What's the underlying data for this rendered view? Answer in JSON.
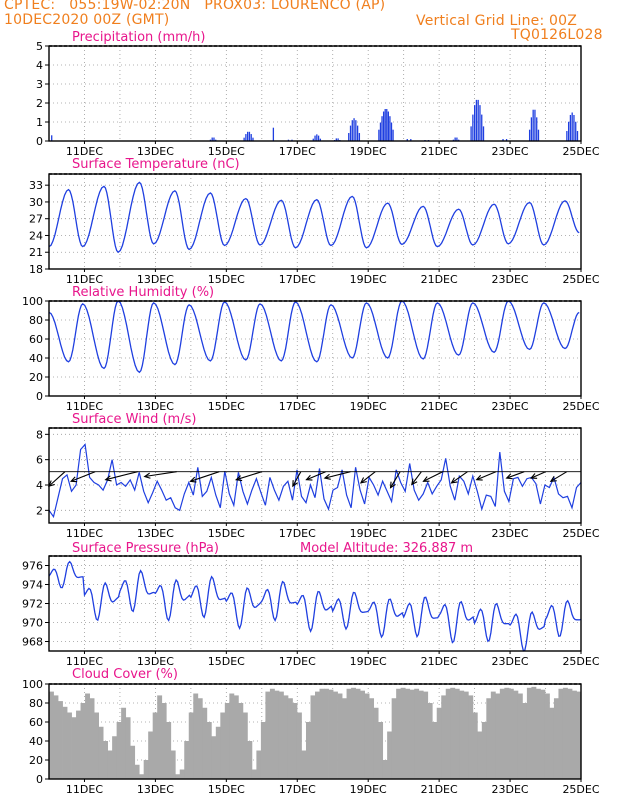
{
  "header": {
    "line1": "CPTEC:   055:19W-02:20N   PROX03: LOURENCO (AP)",
    "line2": "10DEC2020 00Z (GMT)",
    "vertical_grid": "Vertical Grid Line: 00Z",
    "code": "TQ0126L028",
    "model_altitude": "Model Altitude: 326.887  m"
  },
  "colors": {
    "title": "#e8168c",
    "header": "#f07f1e",
    "series": "#1f3fe0",
    "vector": "#000000",
    "cloud": "#a9a9a9",
    "grid": "#9a9a9a"
  },
  "chart_data": [
    {
      "id": "precipitation",
      "type": "bar",
      "title": "Precipitation (mm/h)",
      "ylim": [
        0,
        5
      ],
      "yticks": [
        0,
        1,
        2,
        3,
        4,
        5
      ],
      "xticks": [
        "11DEC",
        "13DEC",
        "15DEC",
        "17DEC",
        "19DEC",
        "21DEC",
        "23DEC",
        "25DEC"
      ],
      "time_range_days": [
        0,
        15
      ],
      "grid": true,
      "bursts": [
        {
          "t": 0.05,
          "w": 0.05,
          "h": 0.3
        },
        {
          "t": 4.55,
          "w": 0.15,
          "h": 0.2
        },
        {
          "t": 5.5,
          "w": 0.25,
          "h": 0.5
        },
        {
          "t": 6.3,
          "w": 0.05,
          "h": 0.7
        },
        {
          "t": 6.75,
          "w": 0.1,
          "h": 0.2
        },
        {
          "t": 7.45,
          "w": 0.2,
          "h": 0.35
        },
        {
          "t": 8.05,
          "w": 0.15,
          "h": 0.15
        },
        {
          "t": 8.45,
          "w": 0.3,
          "h": 1.2
        },
        {
          "t": 9.3,
          "w": 0.4,
          "h": 1.7
        },
        {
          "t": 10.1,
          "w": 0.1,
          "h": 0.3
        },
        {
          "t": 10.6,
          "w": 0.1,
          "h": 0.15
        },
        {
          "t": 11.4,
          "w": 0.15,
          "h": 0.2
        },
        {
          "t": 11.9,
          "w": 0.35,
          "h": 2.2
        },
        {
          "t": 12.8,
          "w": 0.1,
          "h": 0.3
        },
        {
          "t": 13.55,
          "w": 0.25,
          "h": 1.7
        },
        {
          "t": 14.6,
          "w": 0.3,
          "h": 1.5
        }
      ]
    },
    {
      "id": "temperature",
      "type": "line",
      "title": "Surface Temperature (nC)",
      "ylim": [
        18,
        35
      ],
      "yticks": [
        18,
        21,
        24,
        27,
        30,
        33
      ],
      "xticks": [
        "11DEC",
        "13DEC",
        "15DEC",
        "17DEC",
        "19DEC",
        "21DEC",
        "23DEC",
        "25DEC"
      ],
      "daily_max": [
        32.2,
        32.8,
        33.5,
        32.0,
        31.6,
        30.6,
        30.3,
        30.4,
        31.0,
        29.8,
        29.2,
        28.7,
        29.6,
        29.9,
        30.2
      ],
      "daily_min": [
        19.2,
        22.0,
        21.0,
        22.5,
        21.5,
        22.2,
        22.3,
        21.8,
        22.2,
        21.8,
        22.4,
        22.0,
        22.3,
        22.5,
        22.3,
        24.5
      ],
      "peak_phase": 0.55,
      "trough_phase": 0.95
    },
    {
      "id": "humidity",
      "type": "line",
      "title": "Relative Humidity (%)",
      "ylim": [
        0,
        100
      ],
      "yticks": [
        0,
        20,
        40,
        60,
        80,
        100
      ],
      "xticks": [
        "11DEC",
        "13DEC",
        "15DEC",
        "17DEC",
        "19DEC",
        "21DEC",
        "23DEC",
        "25DEC"
      ],
      "daily_min": [
        36,
        29,
        25,
        33,
        37,
        38,
        37,
        36,
        40,
        40,
        39,
        43,
        46,
        49,
        50
      ],
      "daily_max": [
        98,
        97,
        100,
        98,
        96,
        99,
        97,
        99,
        96,
        98,
        100,
        98,
        98,
        100,
        98,
        88
      ],
      "trough_phase": 0.55,
      "peak_phase": 0.95
    },
    {
      "id": "wind",
      "type": "line",
      "title": "Surface Wind (m/s)",
      "ylim": [
        1,
        8.5
      ],
      "yticks": [
        2,
        4,
        6,
        8
      ],
      "xticks": [
        "11DEC",
        "13DEC",
        "15DEC",
        "17DEC",
        "19DEC",
        "21DEC",
        "23DEC",
        "25DEC"
      ],
      "vectors_direction": "from east",
      "speeds": [
        2.0,
        1.5,
        3.0,
        4.5,
        4.8,
        3.5,
        4.0,
        6.8,
        7.2,
        4.6,
        4.2,
        4.0,
        3.6,
        4.4,
        6.0,
        4.0,
        4.2,
        3.9,
        4.4,
        3.6,
        5.0,
        3.5,
        2.6,
        3.4,
        4.3,
        3.6,
        2.8,
        3.0,
        2.2,
        2.0,
        3.3,
        4.2,
        3.2,
        5.4,
        3.1,
        3.5,
        4.6,
        3.2,
        2.2,
        5.1,
        3.3,
        2.4,
        5.0,
        3.5,
        2.5,
        3.6,
        4.5,
        3.4,
        2.4,
        4.6,
        3.6,
        2.8,
        3.9,
        4.3,
        2.8,
        5.2,
        3.1,
        2.6,
        4.0,
        3.0,
        5.3,
        2.9,
        2.1,
        3.6,
        3.8,
        5.2,
        3.2,
        2.2,
        5.4,
        3.6,
        2.5,
        4.6,
        4.0,
        3.2,
        4.3,
        3.5,
        2.7,
        5.2,
        4.2,
        3.5,
        5.7,
        3.6,
        2.8,
        3.3,
        4.2,
        3.3,
        3.9,
        4.4,
        6.1,
        3.9,
        2.8,
        4.7,
        4.3,
        3.3,
        4.7,
        3.5,
        2.1,
        3.2,
        3.1,
        2.3,
        6.6,
        3.5,
        2.7,
        4.5,
        4.6,
        3.9,
        4.5,
        4.6,
        4.1,
        2.5,
        4.0,
        3.8,
        4.6,
        3.3,
        3.0,
        3.1,
        2.2,
        3.8,
        4.2
      ],
      "arrows": [
        {
          "t": 0.45,
          "u": -1.0,
          "v": -0.9
        },
        {
          "t": 1.3,
          "u": -1.5,
          "v": -0.6
        },
        {
          "t": 2.5,
          "u": -2.0,
          "v": -0.5
        },
        {
          "t": 3.6,
          "u": -2.0,
          "v": -0.3
        },
        {
          "t": 4.8,
          "u": -1.8,
          "v": -0.6
        },
        {
          "t": 6.0,
          "u": -1.6,
          "v": -0.5
        },
        {
          "t": 7.1,
          "u": -0.5,
          "v": -0.9
        },
        {
          "t": 7.8,
          "u": -1.2,
          "v": -0.5
        },
        {
          "t": 8.5,
          "u": -1.6,
          "v": -0.4
        },
        {
          "t": 9.2,
          "u": -0.9,
          "v": -0.7
        },
        {
          "t": 9.9,
          "u": -0.6,
          "v": -1.0
        },
        {
          "t": 10.5,
          "u": -0.6,
          "v": -0.8
        },
        {
          "t": 11.1,
          "u": -1.2,
          "v": -0.6
        },
        {
          "t": 11.8,
          "u": -1.0,
          "v": -0.7
        },
        {
          "t": 12.6,
          "u": -1.2,
          "v": -0.5
        },
        {
          "t": 13.4,
          "u": -1.1,
          "v": -0.4
        },
        {
          "t": 14.0,
          "u": -0.9,
          "v": -0.4
        },
        {
          "t": 14.6,
          "u": -1.0,
          "v": -0.6
        }
      ]
    },
    {
      "id": "pressure",
      "type": "line",
      "title": "Surface Pressure (hPa)",
      "ylim": [
        967,
        977
      ],
      "yticks": [
        968,
        970,
        972,
        974,
        976
      ],
      "xticks": [
        "11DEC",
        "13DEC",
        "15DEC",
        "17DEC",
        "19DEC",
        "21DEC",
        "23DEC",
        "25DEC"
      ],
      "daily_mean": [
        974.8,
        972.8,
        973.2,
        973.0,
        972.6,
        972.2,
        972.2,
        971.9,
        971.2,
        971.2,
        970.6,
        970.8,
        970.0,
        969.8,
        970.4
      ],
      "semidiurnal_amp": [
        1.6,
        2.3,
        2.5,
        2.5,
        2.5,
        2.5,
        2.4,
        2.5,
        2.3,
        2.4,
        2.5,
        2.6,
        2.4,
        2.5,
        2.3
      ]
    },
    {
      "id": "cloud",
      "type": "area",
      "title": "Cloud Cover (%)",
      "ylim": [
        0,
        100
      ],
      "yticks": [
        0,
        20,
        40,
        60,
        80,
        100
      ],
      "xticks": [
        "11DEC",
        "13DEC",
        "15DEC",
        "17DEC",
        "19DEC",
        "21DEC",
        "23DEC",
        "25DEC"
      ],
      "hourly_step": 3,
      "values": [
        92,
        88,
        82,
        76,
        70,
        65,
        72,
        80,
        90,
        85,
        70,
        55,
        40,
        30,
        45,
        60,
        75,
        65,
        35,
        15,
        5,
        20,
        50,
        70,
        88,
        80,
        60,
        30,
        5,
        10,
        40,
        70,
        90,
        85,
        75,
        60,
        45,
        55,
        70,
        80,
        90,
        88,
        80,
        70,
        40,
        10,
        30,
        60,
        92,
        95,
        93,
        92,
        88,
        85,
        80,
        70,
        30,
        60,
        88,
        92,
        95,
        95,
        94,
        92,
        90,
        85,
        95,
        96,
        95,
        93,
        90,
        85,
        75,
        60,
        20,
        50,
        85,
        95,
        96,
        95,
        94,
        95,
        93,
        92,
        80,
        60,
        75,
        88,
        95,
        96,
        95,
        93,
        92,
        88,
        70,
        50,
        60,
        85,
        92,
        90,
        95,
        96,
        95,
        93,
        90,
        80,
        96,
        97,
        95,
        94,
        90,
        75,
        85,
        95,
        96,
        95,
        93,
        92
      ]
    }
  ]
}
